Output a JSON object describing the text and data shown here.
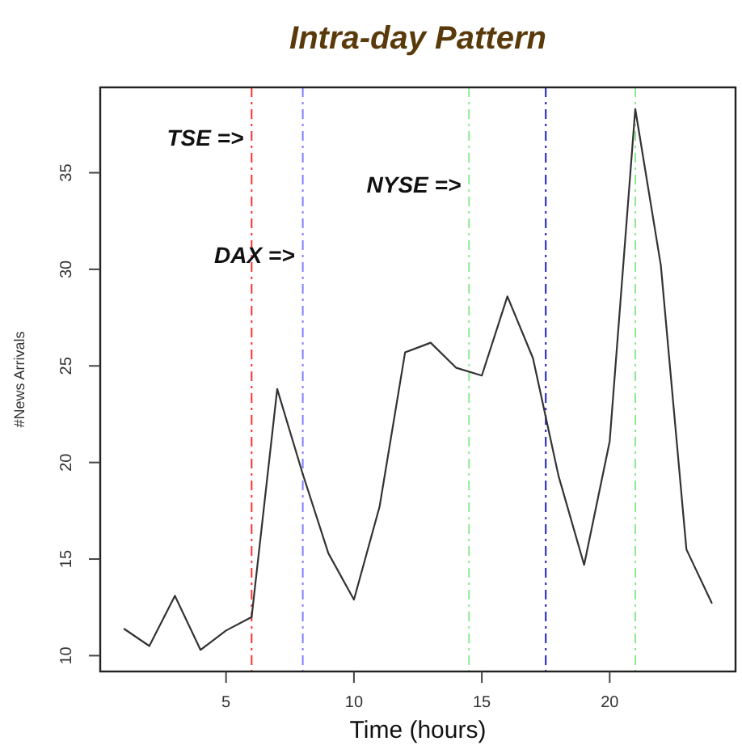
{
  "chart_data": {
    "type": "line",
    "title": "Intra-day Pattern",
    "xlabel": "Time (hours)",
    "ylabel": "#News Arrivals",
    "x": [
      1,
      2,
      3,
      4,
      5,
      6,
      7,
      8,
      9,
      10,
      11,
      12,
      13,
      14,
      15,
      16,
      17,
      18,
      19,
      20,
      21,
      22,
      23,
      24
    ],
    "series": [
      {
        "color": "#333333",
        "values": [
          11.4,
          10.5,
          13.1,
          10.3,
          11.3,
          12.0,
          23.8,
          19.4,
          15.3,
          12.9,
          17.7,
          25.7,
          26.2,
          24.9,
          24.5,
          28.6,
          25.4,
          19.3,
          14.7,
          21.1,
          38.3,
          30.2,
          15.5,
          12.7
        ]
      }
    ],
    "xlim": [
      0.08,
      24.92
    ],
    "ylim": [
      9.18,
      39.42
    ],
    "xticks": [
      5,
      10,
      15,
      20
    ],
    "yticks": [
      10,
      15,
      20,
      25,
      30,
      35
    ],
    "grid": false,
    "marker": "none",
    "line_style": "solid",
    "ref_lines": [
      {
        "axis": "x",
        "value": 6,
        "label": "TSE =>",
        "color": "#ff3030",
        "line_style": "dashdot"
      },
      {
        "axis": "x",
        "value": 8,
        "label": "DAX =>",
        "color": "#8080ff",
        "line_style": "dashdot"
      },
      {
        "axis": "x",
        "value": 14.5,
        "label": "NYSE =>",
        "color": "#90e890",
        "line_style": "dashdot"
      },
      {
        "axis": "x",
        "value": 17.5,
        "label": null,
        "color": "#2020c0",
        "line_style": "dashdot"
      },
      {
        "axis": "x",
        "value": 21,
        "label": null,
        "color": "#90e890",
        "line_style": "dashdot"
      }
    ]
  }
}
